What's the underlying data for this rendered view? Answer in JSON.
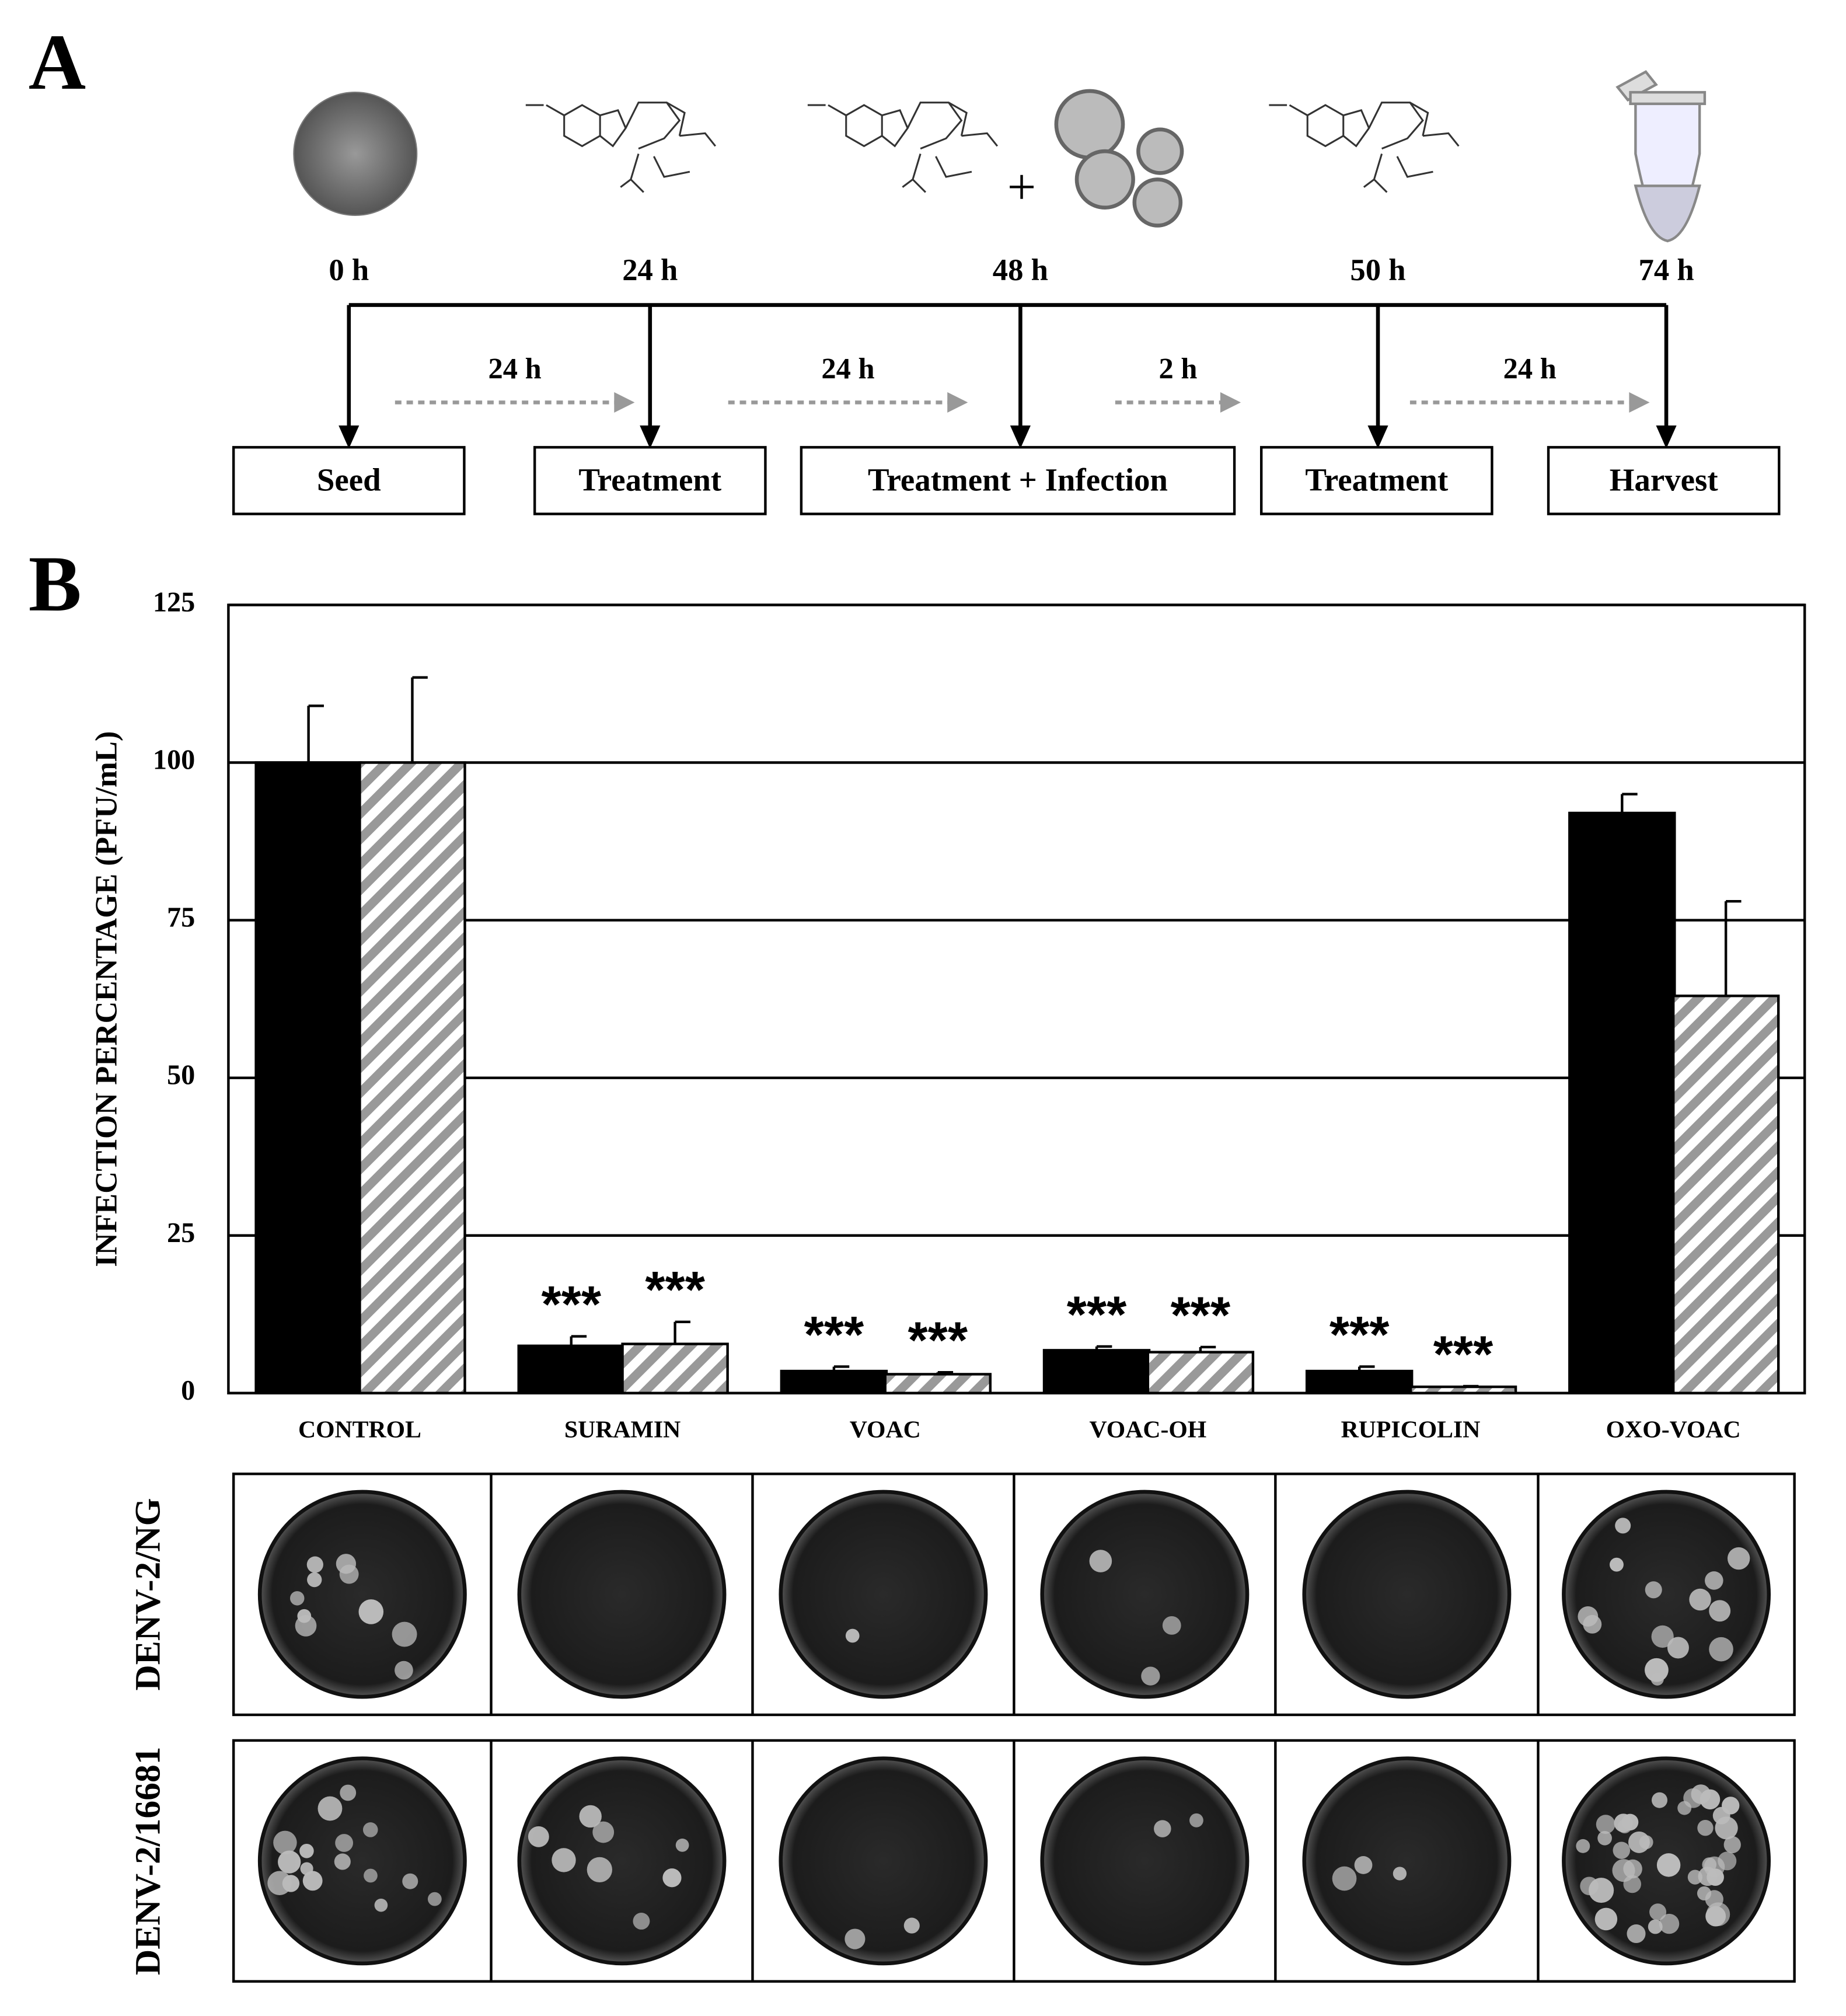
{
  "panels": [
    "A",
    "B"
  ],
  "timeline": {
    "times": [
      "0 h",
      "24 h",
      "48 h",
      "50 h",
      "74 h"
    ],
    "intervals": [
      "24 h",
      "24 h",
      "2 h",
      "24 h"
    ],
    "steps": [
      "Seed",
      "Treatment",
      "Treatment + Infection",
      "Treatment",
      "Harvest"
    ]
  },
  "chart_data": {
    "type": "bar",
    "y_label": "INFECTION PERCENTAGE (PFU/mL)",
    "categories": [
      "CONTROL",
      "SURAMIN",
      "VOAC",
      "VOAC-OH",
      "RUPICOLIN",
      "OXO-VOAC"
    ],
    "series": [
      {
        "name": "DENV-2/NG",
        "color": "#000000",
        "values": [
          100,
          7.5,
          3.5,
          6.8,
          3.5,
          92
        ],
        "errors": [
          9,
          1.5,
          0.7,
          0.6,
          0.7,
          3
        ],
        "labels": [
          null,
          "***",
          "***",
          "***",
          "***",
          null
        ]
      },
      {
        "name": "DENV-2/16681",
        "color": "#999999",
        "values": [
          100,
          7.8,
          3,
          6.5,
          1,
          63
        ],
        "errors": [
          13.5,
          3.5,
          0.3,
          0.8,
          0.1,
          15
        ],
        "labels": [
          null,
          "***",
          "***",
          "***",
          "***",
          null
        ]
      }
    ],
    "ylim": [
      0,
      125
    ],
    "yticks": [
      0,
      25,
      50,
      75,
      100,
      125
    ],
    "grid": true
  }
}
